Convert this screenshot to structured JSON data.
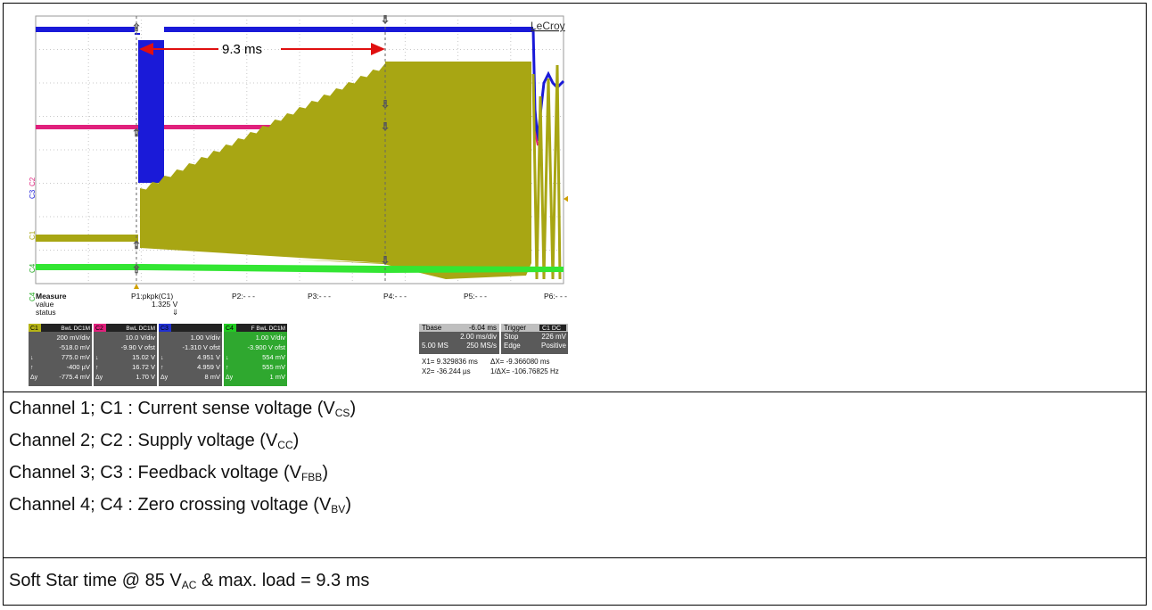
{
  "oscilloscope": {
    "brand": "LeCroy",
    "annotation": "9.3 ms",
    "channel_tags": [
      "C1",
      "C2",
      "C3",
      "C4"
    ],
    "measure": {
      "header": "Measure",
      "row_labels": [
        "value",
        "status"
      ],
      "params": [
        {
          "label": "P1:pkpk(C1)",
          "value": "1.325 V",
          "status": "⇓"
        },
        {
          "label": "P2:- - -",
          "value": "",
          "status": ""
        },
        {
          "label": "P3:- - -",
          "value": "",
          "status": ""
        },
        {
          "label": "P4:- - -",
          "value": "",
          "status": ""
        },
        {
          "label": "P5:- - -",
          "value": "",
          "status": ""
        },
        {
          "label": "P6:- - -",
          "value": "",
          "status": ""
        }
      ]
    },
    "channel_boxes": [
      {
        "tag": "C1",
        "mode": "BwL DC1M",
        "color": "#b5b317",
        "lines": [
          "200 mV/div",
          "-518.0 mV",
          "775.0 mV",
          "-400 µV",
          "-775.4 mV"
        ]
      },
      {
        "tag": "C2",
        "mode": "BwL DC1M",
        "color": "#e0207c",
        "lines": [
          "10.0 V/div",
          "-9.90 V ofst",
          "15.02 V",
          "16.72 V",
          "1.70 V"
        ]
      },
      {
        "tag": "C3",
        "mode": "",
        "color": "#2030d0",
        "lines": [
          "1.00 V/div",
          "-1.310 V ofst",
          "4.951 V",
          "4.959 V",
          "8 mV"
        ]
      },
      {
        "tag": "C4",
        "mode": "F BwL DC1M",
        "color": "#22cc22",
        "lines": [
          "1.00 V/div",
          "-3.900 V ofst",
          "554 mV",
          "555 mV",
          "1 mV"
        ]
      }
    ],
    "timebase": {
      "tbase_label": "Tbase",
      "tbase_value": "-6.04 ms",
      "div": "2.00 ms/div",
      "samples": "5.00 MS",
      "rate": "250 MS/s"
    },
    "trigger": {
      "label": "Trigger",
      "tag": "C1 DC",
      "mode": "Stop",
      "level": "226 mV",
      "type": "Edge",
      "slope": "Positive"
    },
    "cursors": {
      "x1": "X1=  9.329836 ms",
      "dx": "ΔX=   -9.366080 ms",
      "x2": "X2=     -36.244 µs",
      "inv_dx": "1/ΔX=  -106.76825 Hz"
    }
  },
  "captions": [
    {
      "main": "Channel 1; C1 : Current sense voltage (V",
      "sub": "CS",
      "end": ")"
    },
    {
      "main": "Channel 2; C2 : Supply voltage (V",
      "sub": "CC",
      "end": ")"
    },
    {
      "main": "Channel 3; C3 : Feedback voltage (V",
      "sub": "FBB",
      "end": ")"
    },
    {
      "main": "Channel 4; C4 : Zero crossing voltage (V",
      "sub": "BV",
      "end": ")"
    }
  ],
  "footer": {
    "pre": "Soft Star time @ 85 V",
    "sub": "AC",
    "post": " & max. load = 9.3 ms"
  },
  "colors": {
    "ch1": "#a8a613",
    "ch2": "#e0207c",
    "ch3": "#1a1ad8",
    "ch4": "#33e633",
    "arrow": "#e01010"
  }
}
